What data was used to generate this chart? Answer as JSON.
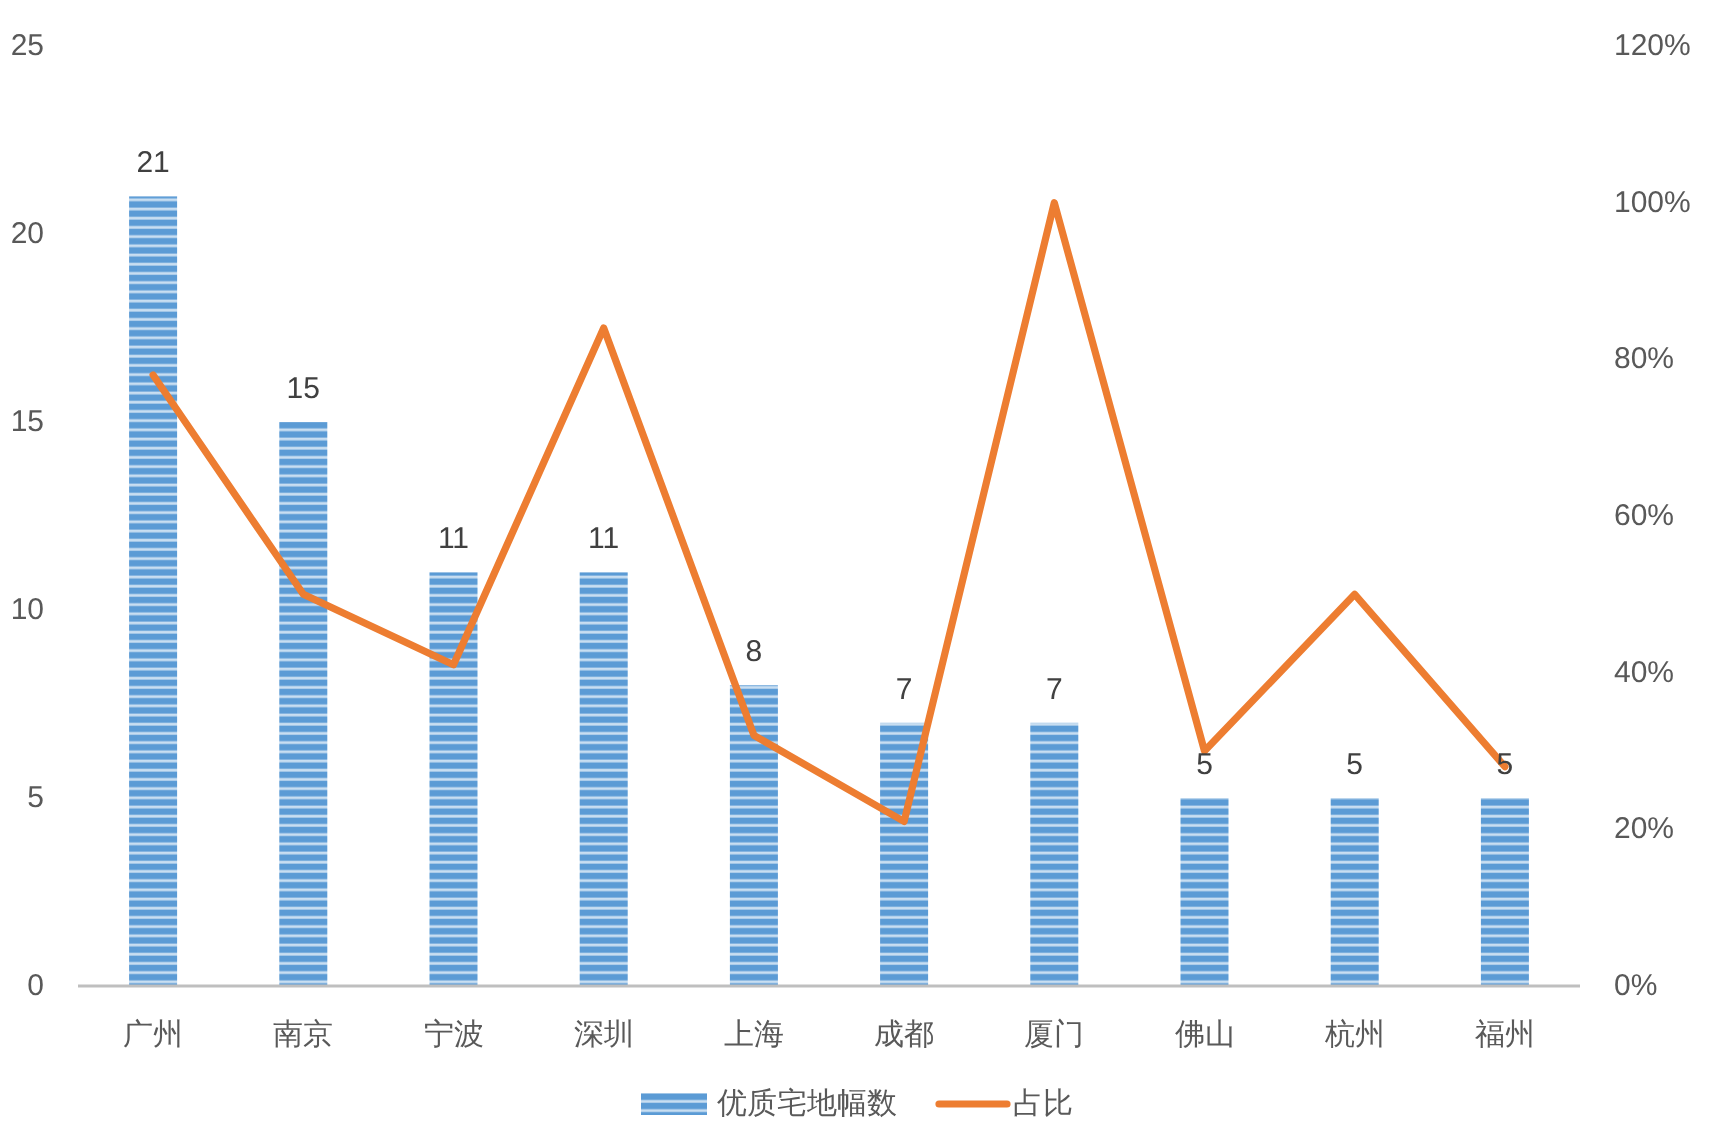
{
  "chart_data": {
    "type": "bar",
    "categories": [
      "广州",
      "南京",
      "宁波",
      "深圳",
      "上海",
      "成都",
      "厦门",
      "佛山",
      "杭州",
      "福州"
    ],
    "series": [
      {
        "name": "优质宅地幅数",
        "color": "#5b9bd5",
        "values": [
          21,
          15,
          11,
          11,
          8,
          7,
          7,
          5,
          5,
          5
        ],
        "value_labels": [
          "21",
          "15",
          "11",
          "11",
          "8",
          "7",
          "7",
          "5",
          "5",
          "5"
        ]
      },
      {
        "name": "占比",
        "type": "line",
        "axis": "y2",
        "color": "#ed7d31",
        "values": [
          78,
          50,
          41,
          84,
          32,
          21,
          100,
          30,
          50,
          28
        ]
      }
    ],
    "ylim": [
      0,
      25
    ],
    "yticks": [
      0,
      5,
      10,
      15,
      20,
      25
    ],
    "y2lim": [
      0,
      120
    ],
    "y2ticks": [
      {
        "value": 0,
        "label": "0%"
      },
      {
        "value": 20,
        "label": "20%"
      },
      {
        "value": 40,
        "label": "40%"
      },
      {
        "value": 60,
        "label": "60%"
      },
      {
        "value": 80,
        "label": "80%"
      },
      {
        "value": 100,
        "label": "100%"
      },
      {
        "value": 120,
        "label": "120%"
      }
    ],
    "legend": "bottom"
  }
}
